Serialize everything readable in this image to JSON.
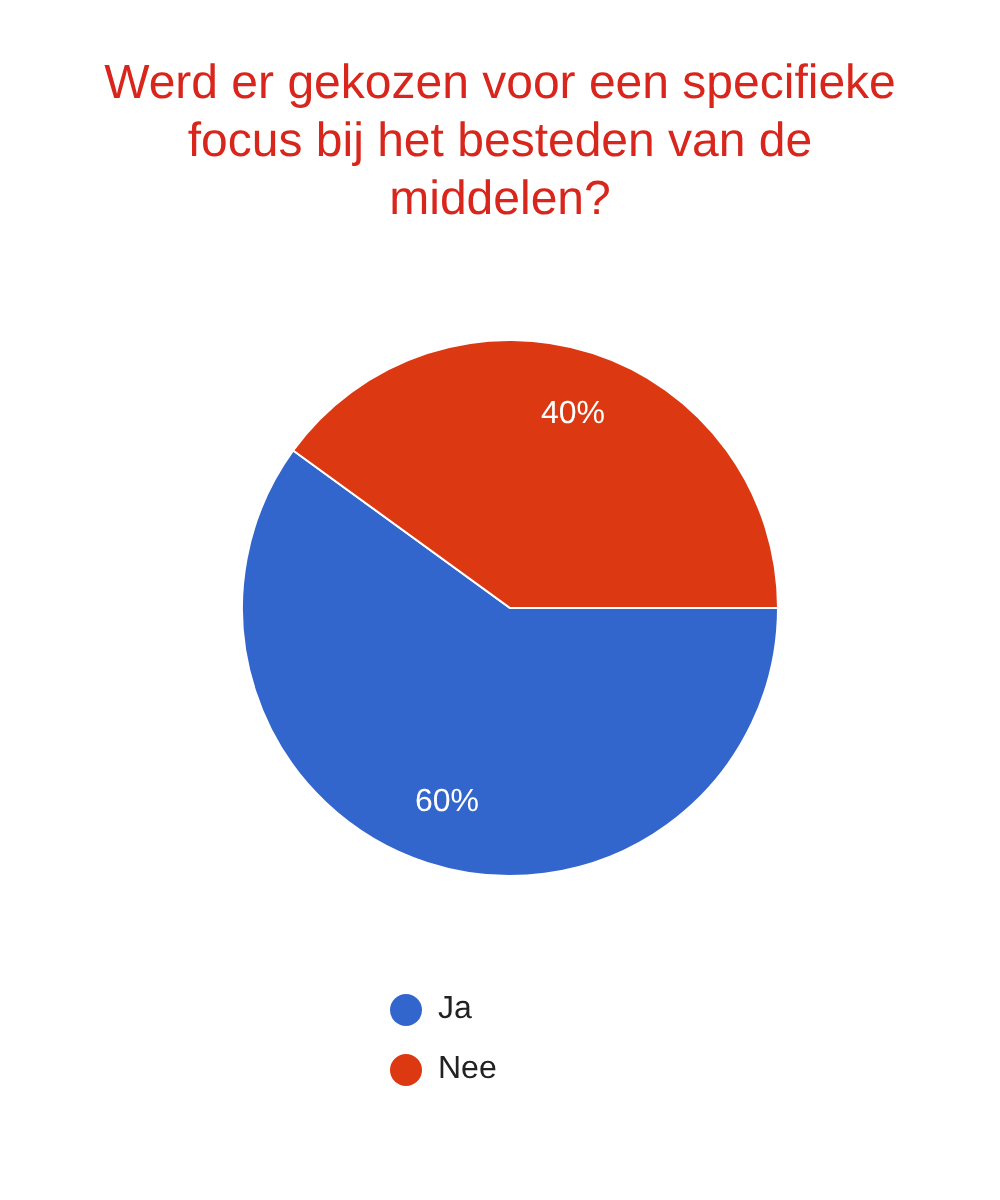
{
  "chart_data": {
    "type": "pie",
    "title": "Werd er gekozen voor een specifieke focus bij het besteden van de middelen?",
    "categories": [
      "Ja",
      "Nee"
    ],
    "values": [
      60,
      40
    ],
    "colors": [
      "#3366cc",
      "#dc3912"
    ],
    "value_labels": [
      "60%",
      "40%"
    ],
    "legend": "bottom"
  }
}
